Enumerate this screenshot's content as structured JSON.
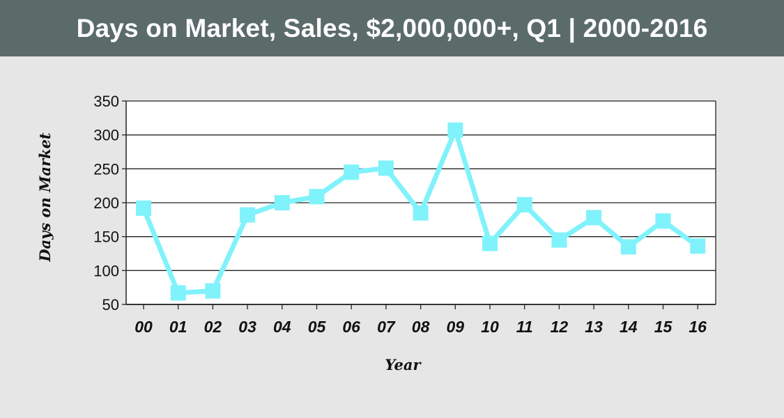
{
  "title": "Days on Market, Sales, $2,000,000+, Q1 | 2000-2016",
  "colors": {
    "header_bg": "#5b6b6a",
    "page_bg": "#e6e6e6",
    "plot_bg": "#ffffff",
    "line": "#80f2fb",
    "grid": "#222222"
  },
  "chart_data": {
    "type": "line",
    "title": "Days on Market, Sales, $2,000,000+, Q1 | 2000-2016",
    "xlabel": "Year",
    "ylabel": "Days on Market",
    "categories": [
      "00",
      "01",
      "02",
      "03",
      "04",
      "05",
      "06",
      "07",
      "08",
      "09",
      "10",
      "11",
      "12",
      "13",
      "14",
      "15",
      "16"
    ],
    "series": [
      {
        "values": [
          192,
          67,
          70,
          182,
          200,
          209,
          245,
          251,
          185,
          307,
          140,
          197,
          145,
          178,
          135,
          173,
          136
        ]
      }
    ],
    "ylim": [
      50,
      350
    ],
    "yticks": [
      50,
      100,
      150,
      200,
      250,
      300,
      350
    ],
    "grid": true,
    "marker": "square"
  }
}
